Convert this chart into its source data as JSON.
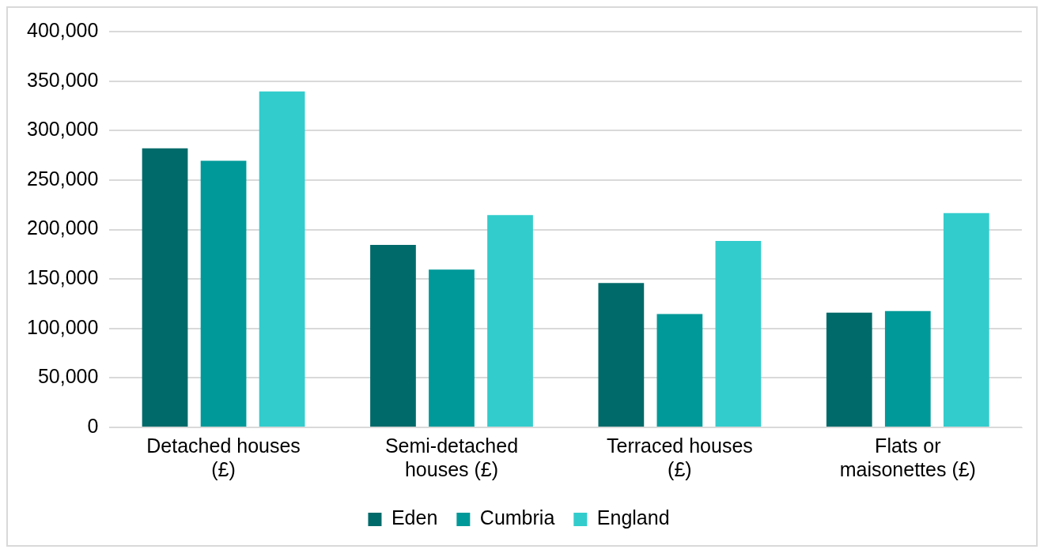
{
  "chart_data": {
    "type": "bar",
    "categories": [
      "Detached houses (£)",
      "Semi-detached houses (£)",
      "Terraced houses (£)",
      "Flats or maisonettes (£)"
    ],
    "series": [
      {
        "name": "Eden",
        "color": "#006a6a",
        "values": [
          282000,
          184500,
          146000,
          116000
        ]
      },
      {
        "name": "Cumbria",
        "color": "#009999",
        "values": [
          269500,
          159500,
          114500,
          117500
        ]
      },
      {
        "name": "England",
        "color": "#33cccc",
        "values": [
          339500,
          214500,
          188500,
          216500
        ]
      }
    ],
    "ylim": [
      0,
      400000
    ],
    "yticks": [
      0,
      {
        "value": 50000,
        "label": "50,000"
      },
      {
        "value": 100000,
        "label": "100,000"
      },
      {
        "value": 150000,
        "label": "150,000"
      },
      {
        "value": 200000,
        "label": "200,000"
      },
      {
        "value": 250000,
        "label": "250,000"
      },
      {
        "value": 300000,
        "label": "300,000"
      },
      {
        "value": 350000,
        "label": "350,000"
      },
      {
        "value": 400000,
        "label": "400,000"
      }
    ],
    "grid": "y",
    "legend": "bottom"
  }
}
